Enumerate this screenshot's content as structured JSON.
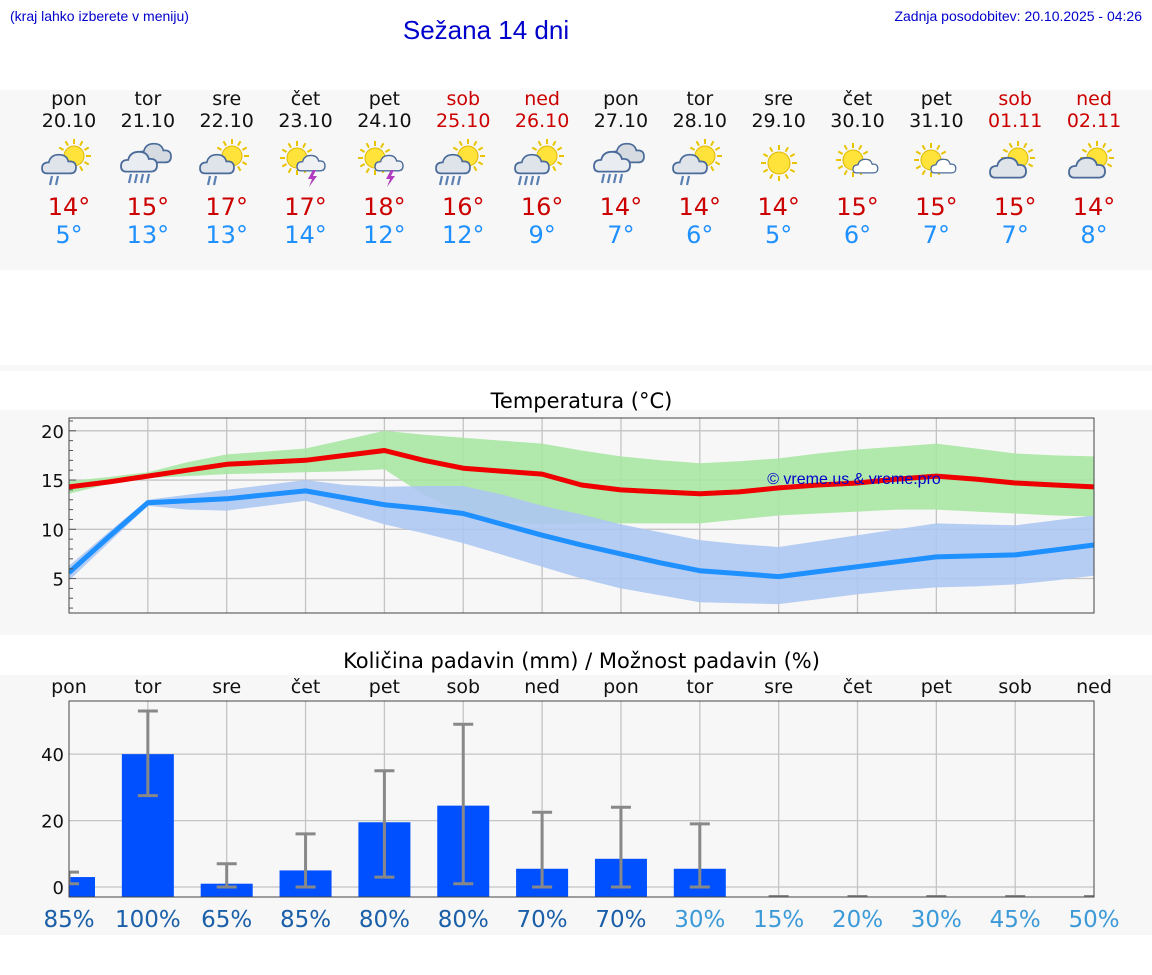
{
  "header": {
    "note": "(kraj lahko izberete v meniju)",
    "title": "Sežana 14 dni",
    "update": "Zadnja posodobitev: 20.10.2025 - 04:26"
  },
  "days": [
    {
      "name": "pon",
      "date": "20.10",
      "weekend": false,
      "icon": "sun-cloud-rain-icon",
      "tmax": "14°",
      "tmin": "5°"
    },
    {
      "name": "tor",
      "date": "21.10",
      "weekend": false,
      "icon": "cloud-heavy-rain-icon",
      "tmax": "15°",
      "tmin": "13°"
    },
    {
      "name": "sre",
      "date": "22.10",
      "weekend": false,
      "icon": "sun-cloud-rain-icon",
      "tmax": "17°",
      "tmin": "13°"
    },
    {
      "name": "čet",
      "date": "23.10",
      "weekend": false,
      "icon": "sun-cloud-thunder-icon",
      "tmax": "17°",
      "tmin": "14°"
    },
    {
      "name": "pet",
      "date": "24.10",
      "weekend": false,
      "icon": "sun-cloud-thunder-icon",
      "tmax": "18°",
      "tmin": "12°"
    },
    {
      "name": "sob",
      "date": "25.10",
      "weekend": true,
      "icon": "sun-cloud-heavy-rain-icon",
      "tmax": "16°",
      "tmin": "12°"
    },
    {
      "name": "ned",
      "date": "26.10",
      "weekend": true,
      "icon": "sun-cloud-heavy-rain-icon",
      "tmax": "16°",
      "tmin": "9°"
    },
    {
      "name": "pon",
      "date": "27.10",
      "weekend": false,
      "icon": "cloud-heavy-rain-icon",
      "tmax": "14°",
      "tmin": "7°"
    },
    {
      "name": "tor",
      "date": "28.10",
      "weekend": false,
      "icon": "sun-cloud-rain-icon",
      "tmax": "14°",
      "tmin": "6°"
    },
    {
      "name": "sre",
      "date": "29.10",
      "weekend": false,
      "icon": "sun-icon",
      "tmax": "14°",
      "tmin": "5°"
    },
    {
      "name": "čet",
      "date": "30.10",
      "weekend": false,
      "icon": "sun-small-cloud-icon",
      "tmax": "15°",
      "tmin": "6°"
    },
    {
      "name": "pet",
      "date": "31.10",
      "weekend": false,
      "icon": "sun-small-cloud-icon",
      "tmax": "15°",
      "tmin": "7°"
    },
    {
      "name": "sob",
      "date": "01.11",
      "weekend": true,
      "icon": "sun-cloud-icon",
      "tmax": "15°",
      "tmin": "7°"
    },
    {
      "name": "ned",
      "date": "02.11",
      "weekend": true,
      "icon": "sun-cloud-icon",
      "tmax": "14°",
      "tmin": "8°"
    }
  ],
  "colors": {
    "max_line": "#ee0000",
    "max_band": "#a9e5a2",
    "min_line": "#1e90ff",
    "min_band": "#adc6f2",
    "bar": "#0050ff",
    "whisker": "#888888",
    "prob_high": "#1a5fa8",
    "prob_low": "#3c9ad8",
    "watermark": "#0000cc"
  },
  "chart_data": [
    {
      "type": "line",
      "title": "Temperatura (°C)",
      "watermark": "© vreme.us & vreme.pro",
      "x": [
        0,
        0.5,
        1,
        1.5,
        2,
        2.5,
        3,
        3.5,
        4,
        4.5,
        5,
        5.5,
        6,
        6.5,
        7,
        7.5,
        8,
        8.5,
        9,
        9.5,
        10,
        10.5,
        11,
        11.5,
        12,
        12.5,
        13
      ],
      "ylim": [
        1.5,
        21.3
      ],
      "yticks": [
        5,
        10,
        15,
        20
      ],
      "grid": true,
      "series": [
        {
          "values": [
            14.3,
            14.8,
            15.4,
            16.0,
            16.6,
            16.8,
            17.0,
            17.5,
            18.0,
            17.0,
            16.2,
            15.9,
            15.6,
            14.5,
            14.0,
            13.8,
            13.6,
            13.8,
            14.2,
            14.5,
            14.7,
            15.1,
            15.4,
            15.1,
            14.7,
            14.5,
            14.3
          ],
          "low": [
            13.6,
            14.6,
            15.2,
            15.4,
            15.6,
            15.7,
            15.8,
            15.9,
            16.1,
            13.5,
            11.6,
            10.8,
            10.5,
            10.6,
            10.6,
            10.6,
            10.6,
            11.0,
            11.4,
            11.6,
            11.8,
            12.0,
            12.0,
            11.8,
            11.6,
            11.4,
            11.3
          ],
          "high": [
            14.9,
            15.3,
            15.8,
            16.8,
            17.6,
            17.9,
            18.2,
            19.1,
            20.0,
            19.6,
            19.3,
            19.0,
            18.7,
            18.0,
            17.4,
            17.0,
            16.7,
            16.9,
            17.2,
            17.7,
            18.1,
            18.4,
            18.7,
            18.2,
            17.7,
            17.5,
            17.4
          ]
        },
        {
          "values": [
            5.6,
            9.2,
            12.7,
            12.9,
            13.1,
            13.5,
            13.9,
            13.2,
            12.5,
            12.1,
            11.6,
            10.5,
            9.4,
            8.4,
            7.5,
            6.6,
            5.8,
            5.5,
            5.2,
            5.7,
            6.2,
            6.7,
            7.2,
            7.3,
            7.4,
            7.9,
            8.4
          ],
          "low": [
            4.8,
            8.6,
            12.4,
            12.0,
            11.9,
            12.4,
            12.9,
            11.7,
            10.5,
            9.6,
            8.6,
            7.4,
            6.2,
            5.0,
            4.0,
            3.3,
            2.6,
            2.5,
            2.4,
            2.9,
            3.4,
            3.8,
            4.1,
            4.2,
            4.4,
            4.8,
            5.3
          ],
          "high": [
            6.3,
            9.7,
            13.0,
            13.5,
            14.0,
            14.5,
            15.0,
            14.5,
            14.3,
            14.4,
            14.4,
            13.5,
            12.4,
            11.5,
            10.5,
            9.7,
            8.9,
            8.5,
            8.2,
            8.8,
            9.4,
            10.0,
            10.6,
            10.5,
            10.4,
            10.9,
            11.4
          ]
        }
      ]
    },
    {
      "type": "bar",
      "title": "Količina padavin (mm) / Možnost padavin (%)",
      "categories": [
        "pon",
        "tor",
        "sre",
        "čet",
        "pet",
        "sob",
        "ned",
        "pon",
        "tor",
        "sre",
        "čet",
        "pet",
        "sob",
        "ned"
      ],
      "values": [
        3.0,
        40.0,
        1.0,
        5.0,
        19.5,
        24.5,
        5.5,
        8.5,
        5.5,
        0,
        0,
        0,
        0,
        0
      ],
      "err_low": [
        1.0,
        27.5,
        0,
        0,
        3.0,
        1.0,
        0,
        0,
        0,
        0,
        0,
        0,
        0,
        0
      ],
      "err_high": [
        4.5,
        53.0,
        7.0,
        16.0,
        35.0,
        49.0,
        22.5,
        24.0,
        19.0,
        0,
        0,
        0,
        0,
        0
      ],
      "ylim": [
        -3,
        56
      ],
      "yticks": [
        0,
        20,
        40
      ],
      "grid": true,
      "probabilities": [
        "85%",
        "100%",
        "65%",
        "85%",
        "80%",
        "80%",
        "70%",
        "70%",
        "30%",
        "15%",
        "20%",
        "30%",
        "45%",
        "50%"
      ]
    }
  ]
}
